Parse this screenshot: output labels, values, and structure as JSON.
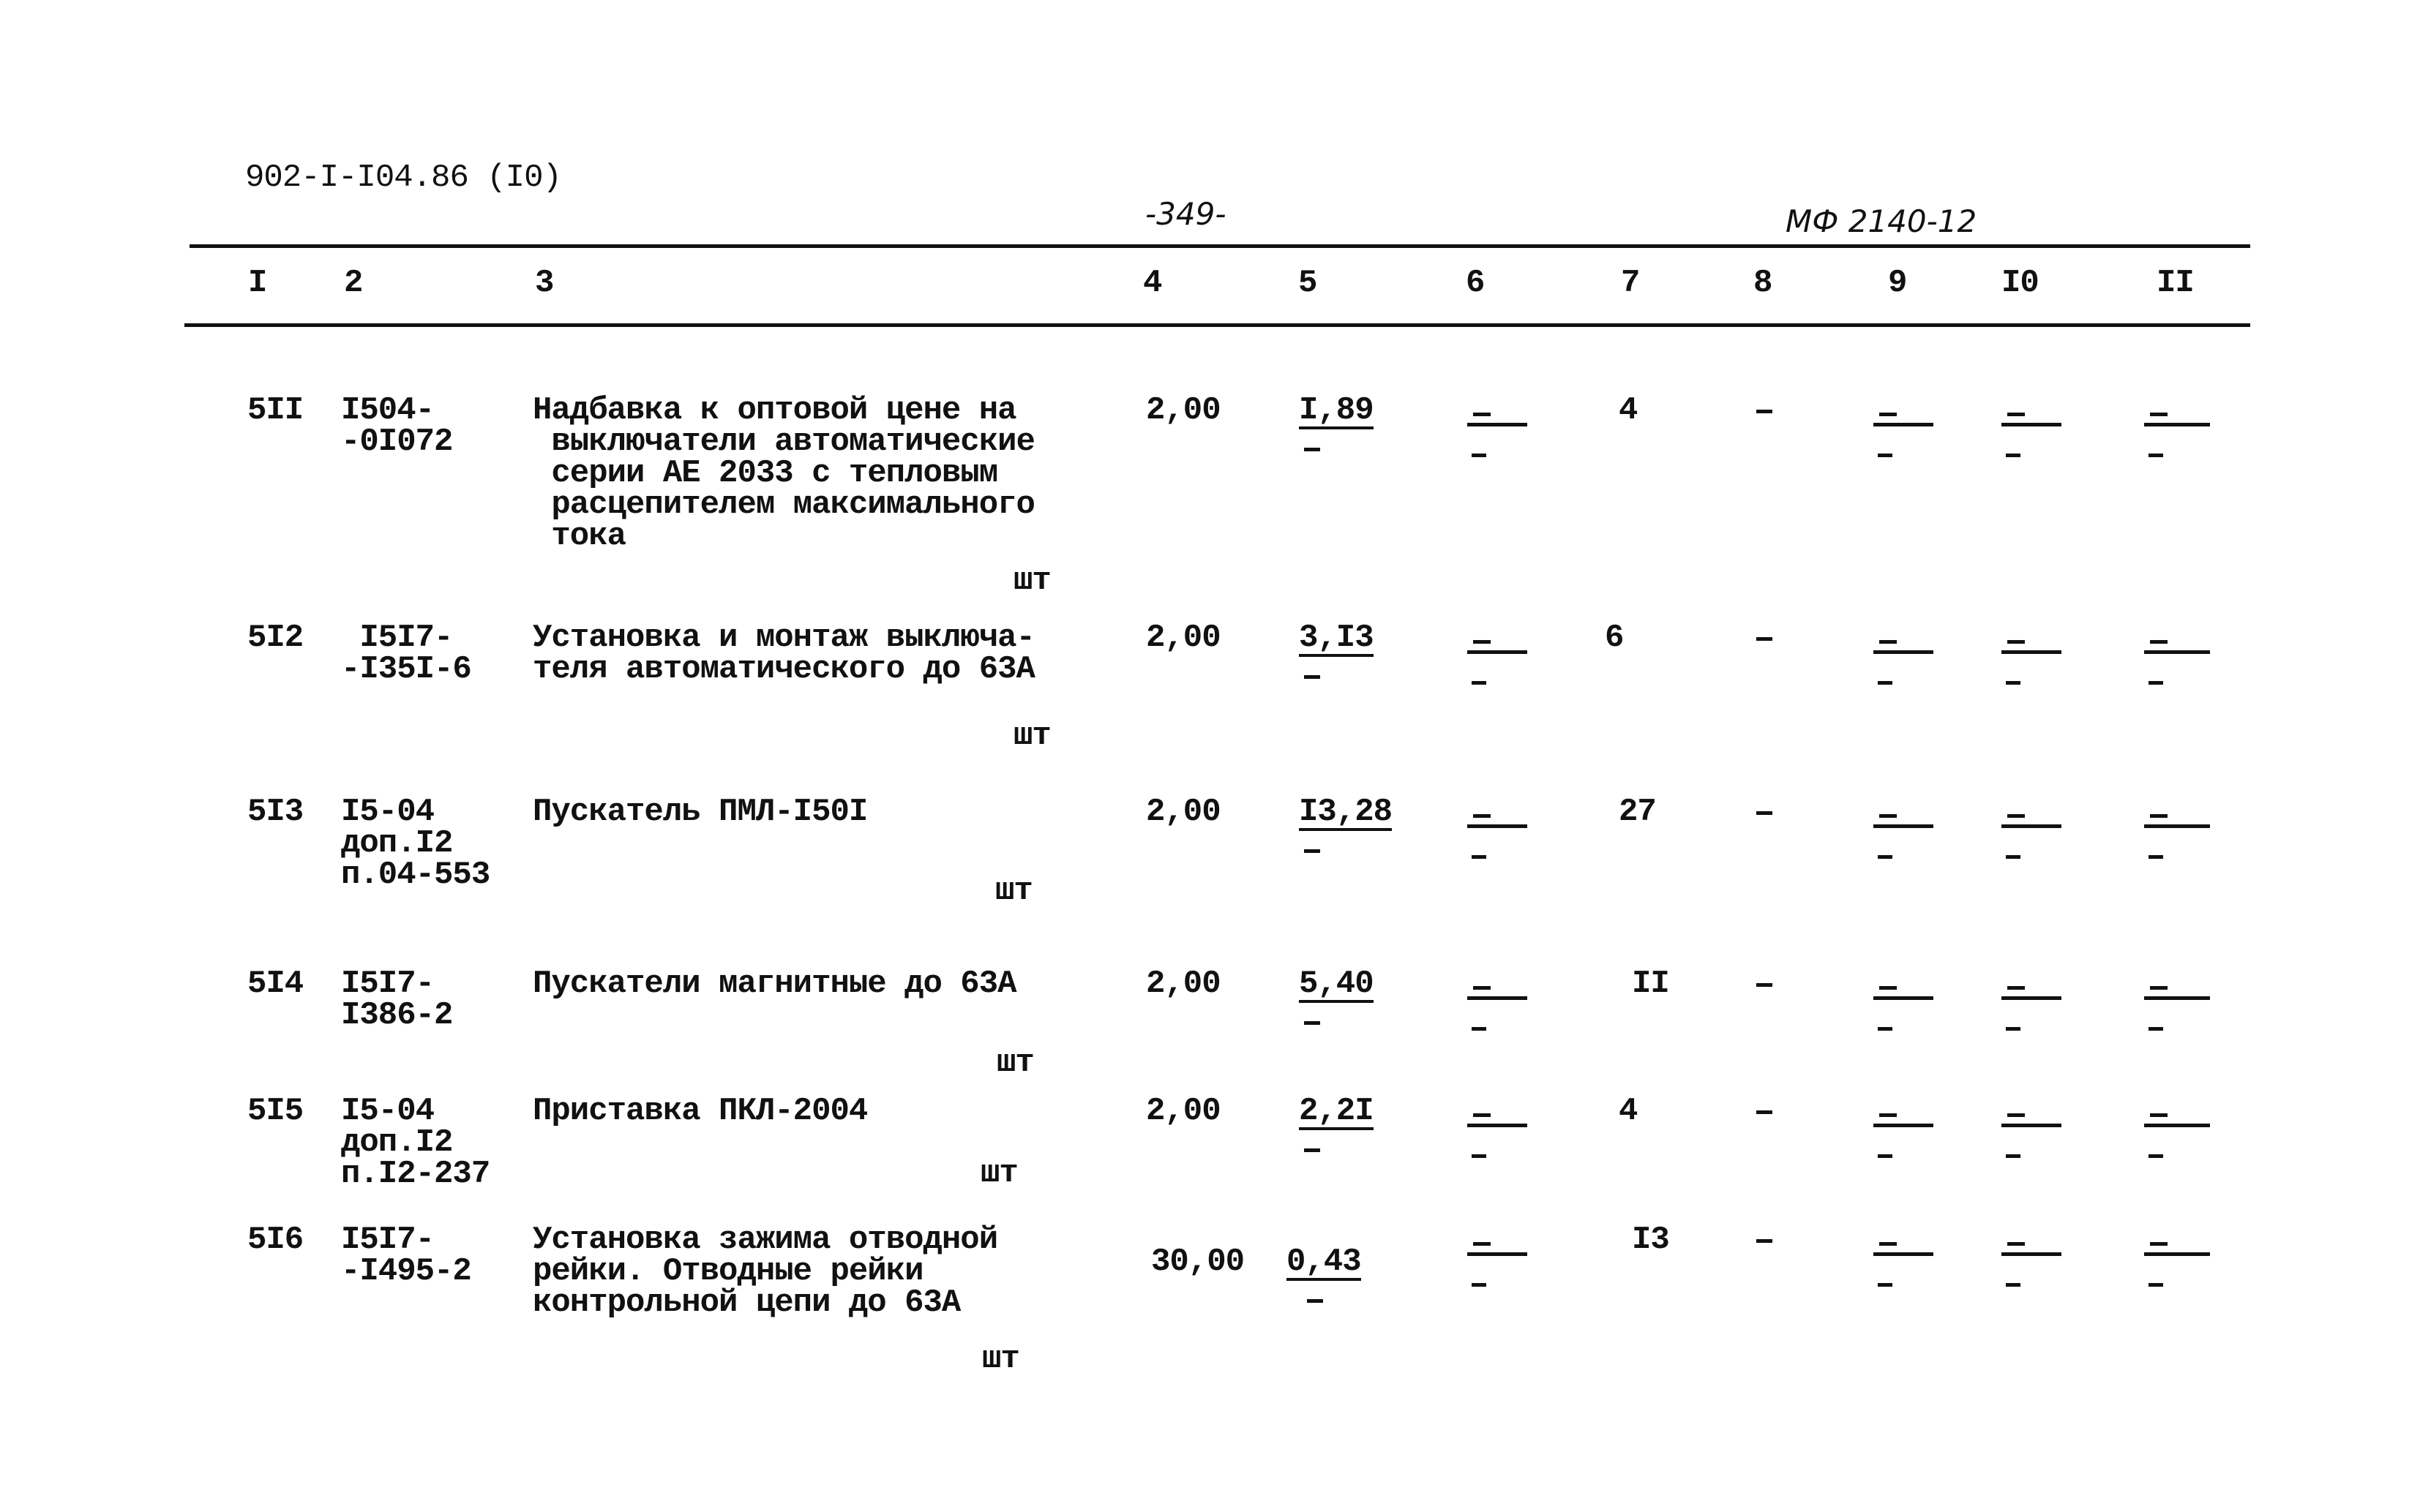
{
  "header": {
    "doc_code": "902-I-I04.86 (I0)",
    "page_number": "-349-",
    "stamp": "МФ 2140-12"
  },
  "columns": [
    "I",
    "2",
    "3",
    "4",
    "5",
    "6",
    "7",
    "8",
    "9",
    "I0",
    "II"
  ],
  "rows": [
    {
      "no": "5II",
      "code": [
        "I504-",
        "-0I072"
      ],
      "desc": [
        "Надбавка к оптовой цене на",
        " выключатели автоматические",
        " серии АЕ 2033 с тепловым",
        " расцепителем максимального",
        " тока"
      ],
      "unit": "шт",
      "qty": "2,00",
      "price": "I,89",
      "col6": "-",
      "col7": "4",
      "col8": "-",
      "col9": "-",
      "col10": "-",
      "col11": "-"
    },
    {
      "no": "5I2",
      "code": [
        " I5I7-",
        "-I35I-6"
      ],
      "desc": [
        "Установка и монтаж выключа-",
        "теля автоматического до 63А"
      ],
      "unit": "шт",
      "qty": "2,00",
      "price": "3,I3",
      "col6": "-",
      "col7": "6",
      "col8": "-",
      "col9": "-",
      "col10": "-",
      "col11": "-"
    },
    {
      "no": "5I3",
      "code": [
        "I5-04",
        "доп.I2",
        "п.04-553"
      ],
      "desc": [
        "Пускатель ПМЛ-I50I"
      ],
      "unit": "шт",
      "qty": "2,00",
      "price": "I3,28",
      "col6": "-",
      "col7": "27",
      "col8": "-",
      "col9": "-",
      "col10": "-",
      "col11": "-"
    },
    {
      "no": "5I4",
      "code": [
        "I5I7-",
        "I386-2"
      ],
      "desc": [
        "Пускатели магнитные до 63А"
      ],
      "unit": "шт",
      "qty": "2,00",
      "price": "5,40",
      "col6": "-",
      "col7": "II",
      "col8": "-",
      "col9": "-",
      "col10": "-",
      "col11": "-"
    },
    {
      "no": "5I5",
      "code": [
        "I5-04",
        "доп.I2",
        "п.I2-237"
      ],
      "desc": [
        "Приставка ПКЛ-2004"
      ],
      "unit": "шт",
      "qty": "2,00",
      "price": "2,2I",
      "col6": "-",
      "col7": "4",
      "col8": "-",
      "col9": "-",
      "col10": "-",
      "col11": "-"
    },
    {
      "no": "5I6",
      "code": [
        "I5I7-",
        "-I495-2"
      ],
      "desc": [
        "Установка зажима отводной",
        "рейки. Отводные рейки",
        "контрольной цепи до 63А"
      ],
      "unit": "шт",
      "qty": "30,00",
      "price": "0,43",
      "col6": "-",
      "col7": "I3",
      "col8": "-",
      "col9": "-",
      "col10": "-",
      "col11": "-"
    }
  ]
}
